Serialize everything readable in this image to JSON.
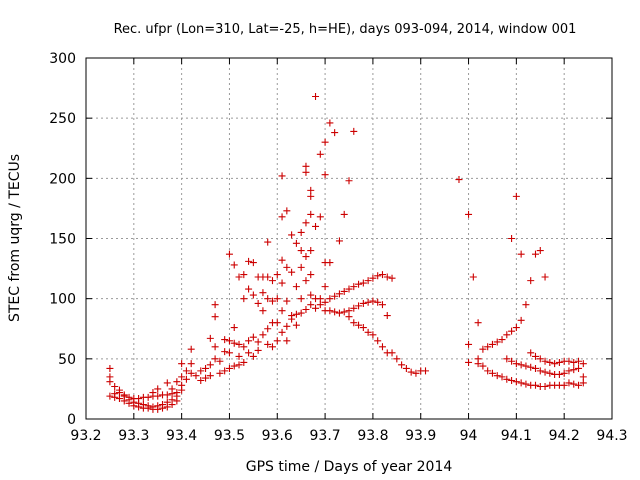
{
  "chart_data": {
    "type": "scatter",
    "title": "Rec. ufpr (Lon=310, Lat=-25, h=HE), days 093-094, 2014, window 001",
    "xlabel": "GPS time / Days of year 2014",
    "ylabel": "STEC from uqrg / TECUs",
    "xlim": [
      93.2,
      94.3
    ],
    "ylim": [
      0,
      300
    ],
    "x_ticks": [
      93.2,
      93.3,
      93.4,
      93.5,
      93.6,
      93.7,
      93.8,
      93.9,
      94,
      94.1,
      94.2,
      94.3
    ],
    "x_tick_labels": [
      "93.2",
      "93.3",
      "93.4",
      "93.5",
      "93.6",
      "93.7",
      "93.8",
      "93.9",
      "94",
      "94.1",
      "94.2",
      "94.3"
    ],
    "y_ticks": [
      0,
      50,
      100,
      150,
      200,
      250,
      300
    ],
    "y_tick_labels": [
      "0",
      "50",
      "100",
      "150",
      "200",
      "250",
      "300"
    ],
    "grid": true,
    "marker": "+",
    "color": "#cc0000",
    "points": [
      [
        93.25,
        42
      ],
      [
        93.25,
        35
      ],
      [
        93.25,
        31
      ],
      [
        93.25,
        19
      ],
      [
        93.26,
        27
      ],
      [
        93.26,
        21
      ],
      [
        93.26,
        18
      ],
      [
        93.27,
        22
      ],
      [
        93.27,
        17
      ],
      [
        93.28,
        19
      ],
      [
        93.28,
        15
      ],
      [
        93.29,
        16
      ],
      [
        93.29,
        13
      ],
      [
        93.3,
        14
      ],
      [
        93.3,
        11
      ],
      [
        93.31,
        13
      ],
      [
        93.31,
        10
      ],
      [
        93.32,
        12
      ],
      [
        93.32,
        9
      ],
      [
        93.33,
        11
      ],
      [
        93.33,
        9
      ],
      [
        93.34,
        10
      ],
      [
        93.34,
        8
      ],
      [
        93.35,
        11
      ],
      [
        93.35,
        8
      ],
      [
        93.36,
        12
      ],
      [
        93.36,
        9
      ],
      [
        93.37,
        14
      ],
      [
        93.37,
        10
      ],
      [
        93.38,
        16
      ],
      [
        93.38,
        12
      ],
      [
        93.39,
        19
      ],
      [
        93.39,
        15
      ],
      [
        93.27,
        24
      ],
      [
        93.28,
        20
      ],
      [
        93.29,
        18
      ],
      [
        93.3,
        17
      ],
      [
        93.31,
        17
      ],
      [
        93.32,
        18
      ],
      [
        93.33,
        18
      ],
      [
        93.34,
        19
      ],
      [
        93.35,
        19
      ],
      [
        93.36,
        20
      ],
      [
        93.37,
        20
      ],
      [
        93.38,
        21
      ],
      [
        93.39,
        22
      ],
      [
        93.4,
        24
      ],
      [
        93.34,
        22
      ],
      [
        93.35,
        25
      ],
      [
        93.37,
        30
      ],
      [
        93.38,
        25
      ],
      [
        93.39,
        31
      ],
      [
        93.4,
        35
      ],
      [
        93.4,
        28
      ],
      [
        93.4,
        46
      ],
      [
        93.41,
        40
      ],
      [
        93.41,
        33
      ],
      [
        93.42,
        58
      ],
      [
        93.42,
        46
      ],
      [
        93.42,
        38
      ],
      [
        93.43,
        36
      ],
      [
        93.44,
        40
      ],
      [
        93.44,
        32
      ],
      [
        93.45,
        42
      ],
      [
        93.45,
        34
      ],
      [
        93.46,
        45
      ],
      [
        93.46,
        36
      ],
      [
        93.46,
        67
      ],
      [
        93.47,
        95
      ],
      [
        93.47,
        85
      ],
      [
        93.47,
        60
      ],
      [
        93.47,
        50
      ],
      [
        93.48,
        48
      ],
      [
        93.48,
        38
      ],
      [
        93.49,
        66
      ],
      [
        93.49,
        56
      ],
      [
        93.49,
        40
      ],
      [
        93.5,
        65
      ],
      [
        93.5,
        55
      ],
      [
        93.5,
        42
      ],
      [
        93.51,
        76
      ],
      [
        93.51,
        63
      ],
      [
        93.51,
        44
      ],
      [
        93.52,
        62
      ],
      [
        93.52,
        52
      ],
      [
        93.52,
        45
      ],
      [
        93.53,
        100
      ],
      [
        93.53,
        60
      ],
      [
        93.53,
        47
      ],
      [
        93.54,
        108
      ],
      [
        93.54,
        65
      ],
      [
        93.54,
        55
      ],
      [
        93.55,
        130
      ],
      [
        93.55,
        68
      ],
      [
        93.55,
        52
      ],
      [
        93.56,
        118
      ],
      [
        93.56,
        96
      ],
      [
        93.56,
        64
      ],
      [
        93.56,
        57
      ],
      [
        93.5,
        137
      ],
      [
        93.51,
        128
      ],
      [
        93.52,
        118
      ],
      [
        93.53,
        120
      ],
      [
        93.54,
        131
      ],
      [
        93.55,
        103
      ],
      [
        93.57,
        118
      ],
      [
        93.57,
        105
      ],
      [
        93.57,
        90
      ],
      [
        93.57,
        70
      ],
      [
        93.58,
        147
      ],
      [
        93.58,
        118
      ],
      [
        93.58,
        100
      ],
      [
        93.58,
        75
      ],
      [
        93.58,
        62
      ],
      [
        93.59,
        115
      ],
      [
        93.59,
        98
      ],
      [
        93.59,
        80
      ],
      [
        93.59,
        60
      ],
      [
        93.6,
        120
      ],
      [
        93.6,
        100
      ],
      [
        93.6,
        80
      ],
      [
        93.6,
        65
      ],
      [
        93.61,
        202
      ],
      [
        93.61,
        168
      ],
      [
        93.61,
        132
      ],
      [
        93.61,
        113
      ],
      [
        93.61,
        90
      ],
      [
        93.61,
        72
      ],
      [
        93.62,
        173
      ],
      [
        93.62,
        126
      ],
      [
        93.62,
        98
      ],
      [
        93.62,
        77
      ],
      [
        93.62,
        65
      ],
      [
        93.63,
        153
      ],
      [
        93.63,
        122
      ],
      [
        93.63,
        86
      ],
      [
        93.63,
        83
      ],
      [
        93.64,
        146
      ],
      [
        93.64,
        110
      ],
      [
        93.64,
        87
      ],
      [
        93.64,
        78
      ],
      [
        93.65,
        155
      ],
      [
        93.65,
        140
      ],
      [
        93.65,
        126
      ],
      [
        93.65,
        100
      ],
      [
        93.65,
        88
      ],
      [
        93.66,
        210
      ],
      [
        93.66,
        205
      ],
      [
        93.66,
        163
      ],
      [
        93.66,
        135
      ],
      [
        93.66,
        115
      ],
      [
        93.66,
        91
      ],
      [
        93.67,
        190
      ],
      [
        93.67,
        185
      ],
      [
        93.67,
        170
      ],
      [
        93.67,
        140
      ],
      [
        93.67,
        120
      ],
      [
        93.67,
        103
      ],
      [
        93.67,
        95
      ],
      [
        93.68,
        268
      ],
      [
        93.68,
        160
      ],
      [
        93.68,
        100
      ],
      [
        93.68,
        92
      ],
      [
        93.69,
        220
      ],
      [
        93.69,
        168
      ],
      [
        93.69,
        100
      ],
      [
        93.69,
        95
      ],
      [
        93.7,
        230
      ],
      [
        93.7,
        203
      ],
      [
        93.7,
        130
      ],
      [
        93.7,
        110
      ],
      [
        93.7,
        97
      ],
      [
        93.7,
        90
      ],
      [
        93.71,
        246
      ],
      [
        93.71,
        130
      ],
      [
        93.71,
        100
      ],
      [
        93.71,
        90
      ],
      [
        93.72,
        238
      ],
      [
        93.72,
        102
      ],
      [
        93.72,
        89
      ],
      [
        93.73,
        148
      ],
      [
        93.73,
        104
      ],
      [
        93.73,
        88
      ],
      [
        93.74,
        170
      ],
      [
        93.74,
        106
      ],
      [
        93.74,
        89
      ],
      [
        93.75,
        198
      ],
      [
        93.75,
        108
      ],
      [
        93.75,
        90
      ],
      [
        93.75,
        85
      ],
      [
        93.76,
        239
      ],
      [
        93.76,
        110
      ],
      [
        93.76,
        92
      ],
      [
        93.76,
        80
      ],
      [
        93.77,
        112
      ],
      [
        93.77,
        94
      ],
      [
        93.77,
        78
      ],
      [
        93.78,
        113
      ],
      [
        93.78,
        96
      ],
      [
        93.78,
        76
      ],
      [
        93.79,
        115
      ],
      [
        93.79,
        97
      ],
      [
        93.79,
        72
      ],
      [
        93.8,
        117
      ],
      [
        93.8,
        98
      ],
      [
        93.8,
        70
      ],
      [
        93.81,
        119
      ],
      [
        93.81,
        97
      ],
      [
        93.81,
        65
      ],
      [
        93.82,
        120
      ],
      [
        93.82,
        95
      ],
      [
        93.82,
        60
      ],
      [
        93.83,
        118
      ],
      [
        93.83,
        86
      ],
      [
        93.83,
        55
      ],
      [
        93.84,
        117
      ],
      [
        93.84,
        55
      ],
      [
        93.85,
        50
      ],
      [
        93.86,
        45
      ],
      [
        93.87,
        42
      ],
      [
        93.88,
        39
      ],
      [
        93.89,
        38
      ],
      [
        93.9,
        40
      ],
      [
        93.91,
        40
      ],
      [
        93.98,
        199
      ],
      [
        94.0,
        170
      ],
      [
        94.01,
        118
      ],
      [
        94.0,
        62
      ],
      [
        94.0,
        47
      ],
      [
        94.02,
        80
      ],
      [
        94.02,
        50
      ],
      [
        94.02,
        46
      ],
      [
        94.03,
        58
      ],
      [
        94.03,
        44
      ],
      [
        94.04,
        60
      ],
      [
        94.04,
        40
      ],
      [
        94.05,
        62
      ],
      [
        94.05,
        38
      ],
      [
        94.06,
        64
      ],
      [
        94.06,
        36
      ],
      [
        94.07,
        66
      ],
      [
        94.07,
        35
      ],
      [
        94.08,
        70
      ],
      [
        94.08,
        50
      ],
      [
        94.08,
        33
      ],
      [
        94.09,
        150
      ],
      [
        94.09,
        73
      ],
      [
        94.09,
        48
      ],
      [
        94.09,
        32
      ],
      [
        94.1,
        185
      ],
      [
        94.1,
        76
      ],
      [
        94.1,
        46
      ],
      [
        94.1,
        31
      ],
      [
        94.11,
        137
      ],
      [
        94.11,
        82
      ],
      [
        94.11,
        45
      ],
      [
        94.11,
        30
      ],
      [
        94.12,
        95
      ],
      [
        94.12,
        44
      ],
      [
        94.12,
        29
      ],
      [
        94.13,
        115
      ],
      [
        94.13,
        55
      ],
      [
        94.13,
        43
      ],
      [
        94.13,
        28
      ],
      [
        94.14,
        137
      ],
      [
        94.14,
        52
      ],
      [
        94.14,
        42
      ],
      [
        94.14,
        28
      ],
      [
        94.15,
        140
      ],
      [
        94.15,
        50
      ],
      [
        94.15,
        40
      ],
      [
        94.15,
        27
      ],
      [
        94.16,
        118
      ],
      [
        94.16,
        48
      ],
      [
        94.16,
        39
      ],
      [
        94.16,
        27
      ],
      [
        94.17,
        47
      ],
      [
        94.17,
        38
      ],
      [
        94.17,
        28
      ],
      [
        94.18,
        46
      ],
      [
        94.18,
        37
      ],
      [
        94.18,
        28
      ],
      [
        94.19,
        47
      ],
      [
        94.19,
        37
      ],
      [
        94.19,
        28
      ],
      [
        94.2,
        48
      ],
      [
        94.2,
        38
      ],
      [
        94.2,
        28
      ],
      [
        94.21,
        48
      ],
      [
        94.21,
        40
      ],
      [
        94.21,
        30
      ],
      [
        94.22,
        47
      ],
      [
        94.22,
        41
      ],
      [
        94.22,
        29
      ],
      [
        94.23,
        48
      ],
      [
        94.23,
        42
      ],
      [
        94.23,
        28
      ],
      [
        94.24,
        46
      ],
      [
        94.24,
        35
      ],
      [
        94.24,
        30
      ]
    ]
  }
}
